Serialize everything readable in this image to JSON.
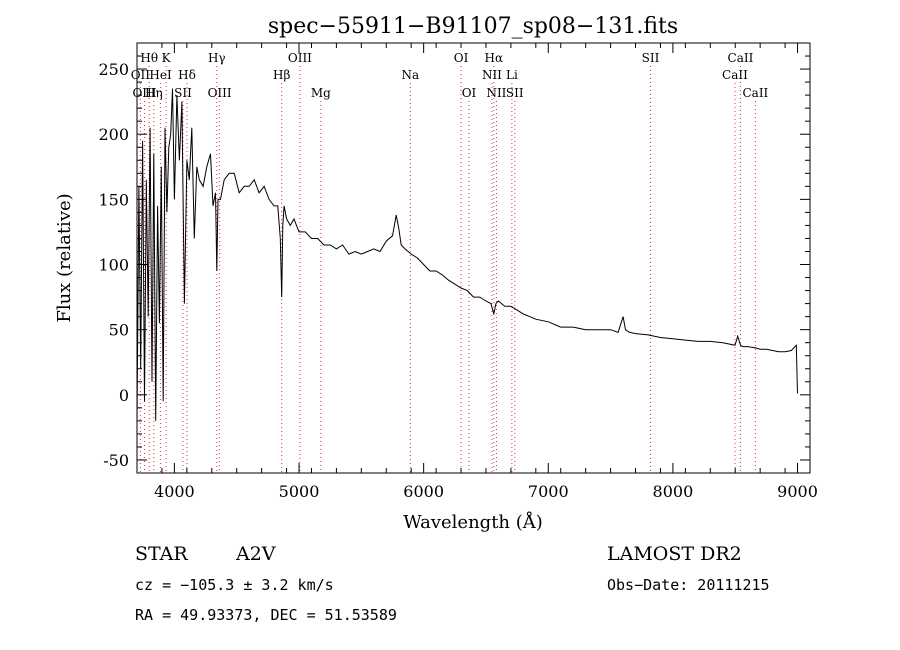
{
  "chart_data": {
    "type": "line",
    "title": "spec−55911−B91107_sp08−131.fits",
    "xlabel": "Wavelength (Å)",
    "ylabel": "Flux (relative)",
    "xlim": [
      3700,
      9100
    ],
    "ylim": [
      -60,
      270
    ],
    "xticks": [
      4000,
      5000,
      6000,
      7000,
      8000,
      9000
    ],
    "yticks": [
      -50,
      0,
      50,
      100,
      150,
      200,
      250
    ],
    "grid": false,
    "legend": "none",
    "series": [
      {
        "x": [
          3700,
          3715,
          3730,
          3745,
          3760,
          3775,
          3790,
          3805,
          3820,
          3835,
          3850,
          3865,
          3880,
          3895,
          3910,
          3925,
          3940,
          3955,
          3970,
          3985,
          4000,
          4020,
          4040,
          4060,
          4080,
          4100,
          4120,
          4140,
          4160,
          4180,
          4200,
          4230,
          4260,
          4290,
          4310,
          4330,
          4340,
          4350,
          4370,
          4400,
          4440,
          4480,
          4520,
          4560,
          4600,
          4640,
          4680,
          4720,
          4760,
          4800,
          4830,
          4850,
          4861,
          4870,
          4880,
          4900,
          4930,
          4960,
          5000,
          5050,
          5100,
          5150,
          5200,
          5250,
          5300,
          5350,
          5400,
          5450,
          5500,
          5550,
          5600,
          5650,
          5700,
          5750,
          5780,
          5800,
          5820,
          5850,
          5900,
          5950,
          6000,
          6050,
          6100,
          6150,
          6200,
          6250,
          6300,
          6350,
          6400,
          6450,
          6500,
          6540,
          6563,
          6580,
          6600,
          6650,
          6700,
          6750,
          6800,
          6850,
          6900,
          7000,
          7100,
          7200,
          7300,
          7400,
          7500,
          7560,
          7600,
          7620,
          7650,
          7700,
          7800,
          7900,
          8000,
          8100,
          8200,
          8300,
          8400,
          8450,
          8498,
          8520,
          8542,
          8560,
          8600,
          8662,
          8700,
          8750,
          8800,
          8850,
          8900,
          8950,
          8990,
          9000
        ],
        "values": [
          -20,
          160,
          20,
          195,
          -5,
          165,
          60,
          205,
          10,
          185,
          -20,
          145,
          55,
          175,
          -5,
          205,
          140,
          190,
          200,
          235,
          150,
          230,
          180,
          225,
          70,
          180,
          165,
          205,
          120,
          175,
          165,
          160,
          175,
          185,
          145,
          155,
          95,
          150,
          150,
          165,
          170,
          170,
          155,
          160,
          160,
          165,
          155,
          160,
          150,
          145,
          145,
          120,
          75,
          130,
          145,
          135,
          130,
          135,
          125,
          125,
          120,
          120,
          115,
          115,
          112,
          115,
          108,
          110,
          108,
          110,
          112,
          110,
          118,
          122,
          138,
          128,
          115,
          112,
          108,
          105,
          100,
          95,
          95,
          92,
          88,
          85,
          82,
          80,
          75,
          75,
          72,
          70,
          62,
          70,
          72,
          68,
          68,
          65,
          62,
          60,
          58,
          56,
          52,
          52,
          50,
          50,
          50,
          48,
          60,
          50,
          48,
          47,
          46,
          44,
          43,
          42,
          41,
          41,
          40,
          39,
          38,
          45,
          38,
          37,
          37,
          36,
          35,
          35,
          34,
          33,
          33,
          34,
          38,
          1
        ]
      }
    ],
    "line_markers": [
      {
        "label": "Hθ",
        "x": 3798,
        "row": 1
      },
      {
        "label": "K",
        "x": 3934,
        "row": 1
      },
      {
        "label": "Hγ",
        "x": 4340,
        "row": 1
      },
      {
        "label": "OIII",
        "x": 5007,
        "row": 1
      },
      {
        "label": "OI",
        "x": 6300,
        "row": 1
      },
      {
        "label": "Hα",
        "x": 6563,
        "row": 1
      },
      {
        "label": "SII",
        "x": 7820,
        "row": 1
      },
      {
        "label": "CaII",
        "x": 8542,
        "row": 1
      },
      {
        "label": "OII",
        "x": 3727,
        "row": 2
      },
      {
        "label": "HeI",
        "x": 3889,
        "row": 2
      },
      {
        "label": "Hδ",
        "x": 4101,
        "row": 2
      },
      {
        "label": "Hβ",
        "x": 4861,
        "row": 2
      },
      {
        "label": "Na",
        "x": 5893,
        "row": 2
      },
      {
        "label": "NII",
        "x": 6548,
        "row": 2
      },
      {
        "label": "Li",
        "x": 6708,
        "row": 2
      },
      {
        "label": "CaII",
        "x": 8498,
        "row": 2
      },
      {
        "label": "OIII",
        "x": 3760,
        "row": 3
      },
      {
        "label": "Hη",
        "x": 3835,
        "row": 3
      },
      {
        "label": "SII",
        "x": 4069,
        "row": 3
      },
      {
        "label": "OIII",
        "x": 4363,
        "row": 3
      },
      {
        "label": "Mg",
        "x": 5175,
        "row": 3
      },
      {
        "label": "OI",
        "x": 6364,
        "row": 3
      },
      {
        "label": "NII",
        "x": 6584,
        "row": 3
      },
      {
        "label": "SII",
        "x": 6731,
        "row": 3
      },
      {
        "label": "CaII",
        "x": 8662,
        "row": 3
      }
    ]
  },
  "info": {
    "class_label": "STAR",
    "subclass": "A2V",
    "survey": "LAMOST DR2",
    "cz": "cz = −105.3 ± 3.2 km/s",
    "obs_date": "Obs−Date: 20111215",
    "coords": "RA =  49.93373, DEC =  51.53589"
  }
}
